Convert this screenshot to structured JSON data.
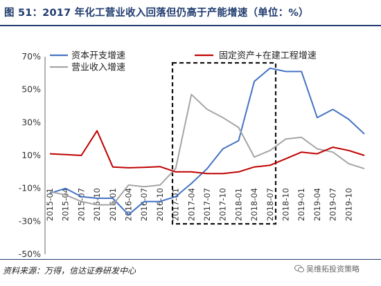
{
  "title": "图 51：2017 年化工营业收入回落但仍高于产能增速（单位：%）",
  "source": "资料来源：万得，信达证券研发中心",
  "watermark": "吴维拓投资策略",
  "chart_data": {
    "type": "line",
    "ylim": [
      -50,
      70
    ],
    "yticks": [
      "70%",
      "50%",
      "30%",
      "10%",
      "-10%",
      "-30%",
      "-50%"
    ],
    "ytick_values": [
      70,
      50,
      30,
      10,
      -10,
      -30,
      -50
    ],
    "x_tick_labels": [
      "2015-01",
      "2015-04",
      "2015-07",
      "2015-10",
      "2016-01",
      "2016-04",
      "2016-07",
      "2016-10",
      "2017-01",
      "2017-04",
      "2017-07",
      "2017-10",
      "2018-01",
      "2018-04",
      "2018-07",
      "2018-10",
      "2019-01",
      "2019-04",
      "2019-07",
      "2019-10"
    ],
    "x": [
      "2015-01",
      "2015-04",
      "2015-07",
      "2015-10",
      "2016-01",
      "2016-04",
      "2016-07",
      "2016-10",
      "2017-01",
      "2017-04",
      "2017-07",
      "2017-10",
      "2018-01",
      "2018-04",
      "2018-07",
      "2018-10",
      "2019-01",
      "2019-04",
      "2019-07",
      "2019-10",
      "2019-12"
    ],
    "legend_position": "top",
    "highlight_box": [
      "2016-12",
      "2018-09"
    ],
    "series": [
      {
        "name": "资本开支增速",
        "color": "#4472c4",
        "values": [
          -13,
          -10,
          -15,
          -16,
          -16,
          -26,
          -18,
          -18,
          -15,
          -7,
          2,
          14,
          19,
          55,
          63,
          61,
          61,
          33,
          38,
          32,
          23
        ]
      },
      {
        "name": "营业收入增速",
        "color": "#a5a5a5",
        "values": [
          -12,
          -14,
          -18,
          -20,
          -20,
          -8,
          -9,
          -8,
          2,
          47,
          38,
          33,
          27,
          9,
          13,
          20,
          21,
          14,
          12,
          5,
          2
        ]
      },
      {
        "name": "固定资产+在建工程增速",
        "color": "#c00000",
        "values": [
          11,
          10.5,
          10,
          25,
          3,
          2.5,
          2.8,
          3.2,
          0,
          0,
          -1,
          -1,
          0,
          3,
          4,
          8,
          12,
          11,
          15,
          13,
          10
        ]
      }
    ]
  }
}
